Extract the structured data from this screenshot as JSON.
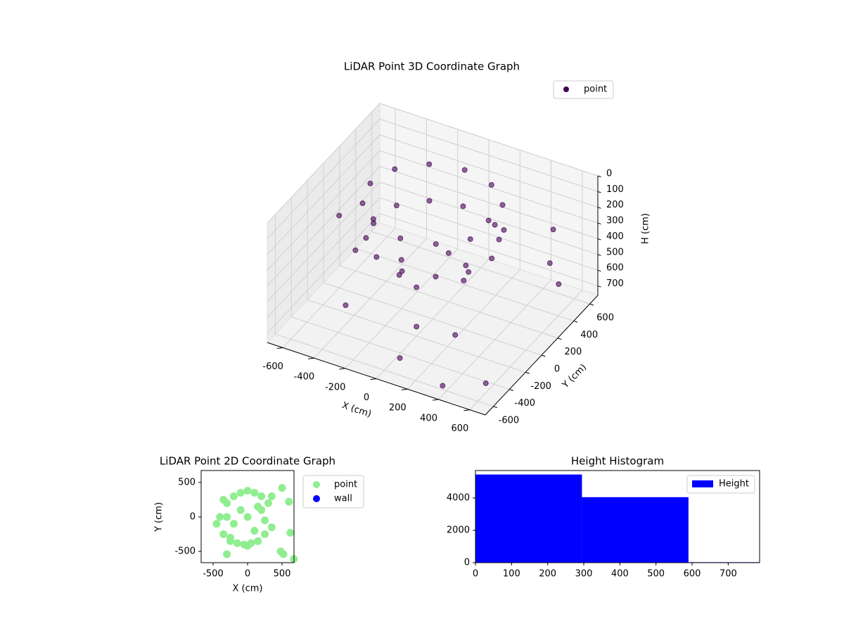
{
  "chart_data": [
    {
      "type": "scatter3d",
      "title": "LiDAR Point 3D Coordinate Graph",
      "x_label": "X (cm)",
      "y_label": "Y (cm)",
      "z_label": "H (cm)",
      "xlim": [
        -700,
        700
      ],
      "ylim": [
        -700,
        700
      ],
      "zlim": [
        760,
        0
      ],
      "xticks": [
        -600,
        -400,
        -200,
        0,
        200,
        400,
        600
      ],
      "yticks": [
        -600,
        -400,
        -200,
        0,
        200,
        400,
        600
      ],
      "zticks": [
        0,
        100,
        200,
        300,
        400,
        500,
        600,
        700
      ],
      "grid": true,
      "legend": "upper right",
      "series": [
        {
          "name": "point",
          "color": "#440154",
          "x": [
            400,
            346,
            200,
            0,
            -200,
            -346,
            -400,
            -346,
            -200,
            0,
            200,
            346,
            380,
            329,
            190,
            0,
            -190,
            -329,
            -380,
            -329,
            -190,
            0,
            190,
            329,
            200,
            0,
            -200,
            0,
            141,
            -141,
            -650,
            500,
            600,
            100,
            300,
            -300,
            650,
            620,
            -600,
            400,
            0,
            200
          ],
          "y": [
            0,
            200,
            346,
            400,
            346,
            200,
            0,
            -200,
            -346,
            -400,
            -346,
            -200,
            0,
            190,
            329,
            380,
            329,
            190,
            0,
            -190,
            -329,
            -380,
            -329,
            -190,
            0,
            200,
            0,
            -200,
            141,
            -141,
            300,
            600,
            -500,
            -600,
            -300,
            -500,
            200,
            300,
            0,
            -650,
            -200,
            500
          ],
          "z": [
            30,
            30,
            30,
            30,
            30,
            30,
            30,
            30,
            30,
            30,
            30,
            30,
            250,
            250,
            250,
            250,
            250,
            250,
            250,
            250,
            250,
            250,
            250,
            250,
            450,
            450,
            450,
            450,
            450,
            450,
            700,
            700,
            700,
            650,
            600,
            500,
            300,
            150,
            300,
            700,
            700,
            400
          ]
        }
      ]
    },
    {
      "type": "scatter",
      "title": "LiDAR Point 2D Coordinate Graph",
      "x_label": "X (cm)",
      "y_label": "Y (cm)",
      "xlim": [
        -673,
        673
      ],
      "ylim": [
        -663,
        673
      ],
      "xticks": [
        -500,
        0,
        500
      ],
      "yticks": [
        -500,
        0,
        500
      ],
      "legend": "outside right",
      "series": [
        {
          "name": "point",
          "color": "#90ee90",
          "x": [
            -400,
            -300,
            -200,
            -100,
            0,
            100,
            200,
            300,
            -450,
            -350,
            -250,
            -150,
            -50,
            50,
            150,
            250,
            350,
            -300,
            -200,
            -100,
            0,
            100,
            200,
            -350,
            -250,
            0,
            150,
            250,
            500,
            600,
            620,
            -300,
            480,
            520,
            670,
            350
          ],
          "y": [
            0,
            200,
            300,
            350,
            380,
            350,
            300,
            200,
            -100,
            -250,
            -350,
            -380,
            -400,
            -380,
            -350,
            -250,
            -150,
            0,
            -100,
            100,
            0,
            -200,
            100,
            250,
            -300,
            -420,
            150,
            -50,
            420,
            220,
            -230,
            -540,
            -500,
            -540,
            -610,
            300
          ]
        },
        {
          "name": "wall",
          "color": "#0000ff",
          "x": [],
          "y": []
        }
      ]
    },
    {
      "type": "histogram",
      "title": "Height Histogram",
      "bins": [
        0,
        295,
        590,
        787
      ],
      "values": [
        5450,
        4050,
        30
      ],
      "xlim": [
        0,
        787
      ],
      "ylim": [
        0,
        5696
      ],
      "xticks": [
        0,
        100,
        200,
        300,
        400,
        500,
        600,
        700
      ],
      "yticks": [
        0,
        2000,
        4000
      ],
      "legend": "upper right",
      "series": [
        {
          "name": "Height",
          "color": "#0000ff"
        }
      ]
    }
  ]
}
